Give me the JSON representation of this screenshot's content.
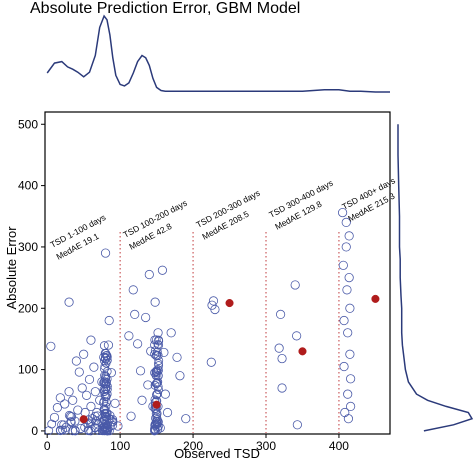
{
  "chart_data": {
    "type": "scatter",
    "title": "Absolute Prediction Error, GBM Model",
    "xlabel": "Observed TSD",
    "ylabel": "Absolute Error",
    "xlim": [
      -3,
      470
    ],
    "ylim": [
      -5,
      520
    ],
    "x_ticks": [
      0,
      100,
      200,
      300,
      400
    ],
    "y_ticks": [
      0,
      100,
      200,
      300,
      400,
      500
    ],
    "grid": false,
    "colors": {
      "points": "#4a5aa8",
      "median": "#b01c1c",
      "divider": "#c0393b",
      "density": "#2b3a7a"
    },
    "dividers": [
      100,
      200,
      300,
      400
    ],
    "groups": [
      {
        "label": "TSD 1-100 days",
        "medae_label": "MedAE 19.1",
        "median_point": [
          50,
          19.1
        ]
      },
      {
        "label": "TSD 100-200 days",
        "medae_label": "MedAE 42.8",
        "median_point": [
          150,
          42.8
        ]
      },
      {
        "label": "TSD 200-300 days",
        "medae_label": "MedAE 208.5",
        "median_point": [
          250,
          208.5
        ]
      },
      {
        "label": "TSD 300-400 days",
        "medae_label": "MedAE 129.8",
        "median_point": [
          350,
          129.8
        ]
      },
      {
        "label": "TSD 400+ days",
        "medae_label": "MedAE 215.3",
        "median_point": [
          450,
          215.3
        ]
      }
    ],
    "scatter_points": [
      [
        5,
        138
      ],
      [
        10,
        22
      ],
      [
        14,
        38
      ],
      [
        18,
        54
      ],
      [
        20,
        10
      ],
      [
        24,
        44
      ],
      [
        26,
        6
      ],
      [
        30,
        64
      ],
      [
        30,
        210
      ],
      [
        32,
        24
      ],
      [
        35,
        50
      ],
      [
        38,
        16
      ],
      [
        40,
        114
      ],
      [
        42,
        34
      ],
      [
        44,
        96
      ],
      [
        46,
        4
      ],
      [
        48,
        70
      ],
      [
        50,
        125
      ],
      [
        52,
        30
      ],
      [
        54,
        58
      ],
      [
        56,
        12
      ],
      [
        58,
        84
      ],
      [
        60,
        148
      ],
      [
        60,
        40
      ],
      [
        62,
        20
      ],
      [
        64,
        104
      ],
      [
        66,
        64
      ],
      [
        68,
        30
      ],
      [
        70,
        10
      ],
      [
        72,
        50
      ],
      [
        75,
        80
      ],
      [
        78,
        35
      ],
      [
        80,
        118
      ],
      [
        80,
        290
      ],
      [
        82,
        60
      ],
      [
        84,
        140
      ],
      [
        85,
        180
      ],
      [
        86,
        25
      ],
      [
        88,
        95
      ],
      [
        90,
        15
      ],
      [
        93,
        45
      ],
      [
        97,
        8
      ],
      [
        112,
        155
      ],
      [
        115,
        24
      ],
      [
        118,
        230
      ],
      [
        120,
        190
      ],
      [
        124,
        142
      ],
      [
        128,
        98
      ],
      [
        130,
        50
      ],
      [
        135,
        185
      ],
      [
        138,
        75
      ],
      [
        140,
        255
      ],
      [
        142,
        130
      ],
      [
        145,
        40
      ],
      [
        148,
        210
      ],
      [
        150,
        95
      ],
      [
        152,
        160
      ],
      [
        155,
        5
      ],
      [
        158,
        262
      ],
      [
        160,
        128
      ],
      [
        162,
        60
      ],
      [
        165,
        30
      ],
      [
        170,
        160
      ],
      [
        178,
        120
      ],
      [
        182,
        90
      ],
      [
        190,
        20
      ],
      [
        225,
        112
      ],
      [
        226,
        205
      ],
      [
        228,
        212
      ],
      [
        230,
        198
      ],
      [
        318,
        135
      ],
      [
        320,
        190
      ],
      [
        322,
        118
      ],
      [
        322,
        70
      ],
      [
        340,
        238
      ],
      [
        342,
        155
      ],
      [
        343,
        10
      ],
      [
        405,
        356
      ],
      [
        406,
        270
      ],
      [
        407,
        180
      ],
      [
        407,
        105
      ],
      [
        408,
        30
      ],
      [
        410,
        340
      ],
      [
        410,
        300
      ],
      [
        411,
        230
      ],
      [
        412,
        160
      ],
      [
        412,
        60
      ],
      [
        413,
        20
      ],
      [
        414,
        318
      ],
      [
        414,
        250
      ],
      [
        415,
        200
      ],
      [
        415,
        125
      ],
      [
        416,
        85
      ],
      [
        416,
        40
      ]
    ],
    "dense_columns": [
      {
        "x": 80,
        "max": 140
      },
      {
        "x": 150,
        "max": 150
      }
    ],
    "top_density": {
      "x": [
        0,
        10,
        20,
        28,
        35,
        42,
        50,
        58,
        66,
        72,
        78,
        82,
        86,
        90,
        94,
        100,
        106,
        112,
        118,
        124,
        130,
        135,
        140,
        145,
        150,
        156,
        162,
        170,
        180,
        200,
        250,
        300,
        350,
        380,
        400,
        415,
        430,
        450,
        470
      ],
      "y": [
        0.25,
        0.38,
        0.4,
        0.33,
        0.3,
        0.26,
        0.2,
        0.26,
        0.48,
        0.85,
        1.0,
        0.95,
        0.75,
        0.45,
        0.22,
        0.1,
        0.08,
        0.12,
        0.25,
        0.4,
        0.48,
        0.45,
        0.35,
        0.18,
        0.06,
        0.02,
        0.01,
        0.01,
        0.01,
        0.01,
        0.01,
        0.01,
        0.01,
        0.03,
        0.03,
        0.01,
        0.01,
        0.0,
        0.0
      ]
    },
    "right_density": {
      "y": [
        0,
        10,
        20,
        30,
        40,
        50,
        60,
        80,
        100,
        120,
        140,
        160,
        180,
        200,
        220,
        250,
        280,
        300,
        320,
        350,
        400,
        450,
        500
      ],
      "d": [
        0.35,
        0.75,
        1.0,
        0.95,
        0.65,
        0.4,
        0.25,
        0.14,
        0.1,
        0.08,
        0.06,
        0.05,
        0.05,
        0.05,
        0.04,
        0.03,
        0.03,
        0.02,
        0.02,
        0.02,
        0.01,
        0.0,
        0.0
      ]
    }
  }
}
